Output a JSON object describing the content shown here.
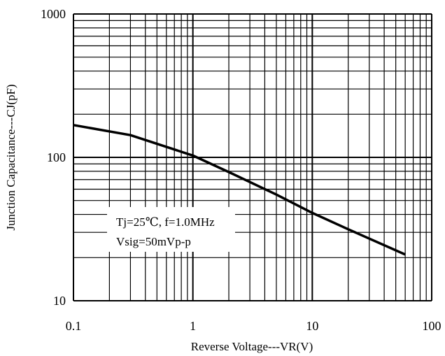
{
  "chart_data": {
    "type": "line",
    "x_scale": "log",
    "y_scale": "log",
    "xlim": [
      0.1,
      100
    ],
    "ylim": [
      10,
      1000
    ],
    "xlabel": "Reverse Voltage---VR(V)",
    "ylabel": "Junction Capacitance---CJ(pF)",
    "x_tick_labels": [
      "0.1",
      "1",
      "10",
      "100"
    ],
    "y_tick_labels": [
      "10",
      "100",
      "1000"
    ],
    "grid": true,
    "series": [
      {
        "color": "#000000",
        "points": [
          {
            "x": 0.1,
            "y": 168
          },
          {
            "x": 0.3,
            "y": 143
          },
          {
            "x": 1,
            "y": 103
          },
          {
            "x": 2,
            "y": 79
          },
          {
            "x": 5,
            "y": 55
          },
          {
            "x": 10,
            "y": 41
          },
          {
            "x": 20,
            "y": 31.5
          },
          {
            "x": 60,
            "y": 21
          }
        ]
      }
    ],
    "annotation": {
      "line1": "Tj=25℃, f=1.0MHz",
      "line2": "Vsig=50mVp-p"
    }
  }
}
